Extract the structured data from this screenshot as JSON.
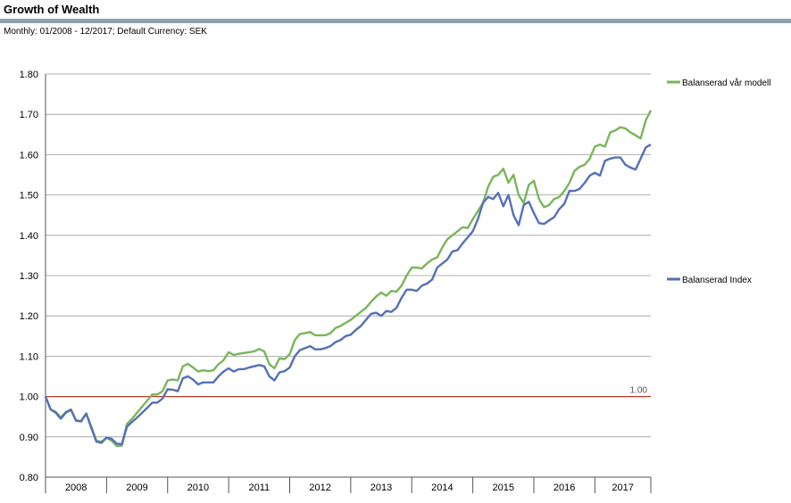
{
  "header": {
    "title": "Growth of Wealth",
    "subtitle": "Monthly: 01/2008 - 12/2017; Default Currency: SEK"
  },
  "colors": {
    "title_rule": "#8ea1b3",
    "model": "#79b65a",
    "index": "#5470b8",
    "baseline": "#c0392b",
    "grid": "#9a9a9a"
  },
  "chart_data": {
    "type": "line",
    "title": "Growth of Wealth",
    "xlabel": "",
    "ylabel": "",
    "ylim": [
      0.8,
      1.8
    ],
    "yticks": [
      "1.80",
      "1.70",
      "1.60",
      "1.50",
      "1.40",
      "1.30",
      "1.20",
      "1.10",
      "1.00",
      "0.90",
      "0.80"
    ],
    "ytick_values": [
      1.8,
      1.7,
      1.6,
      1.5,
      1.4,
      1.3,
      1.2,
      1.1,
      1.0,
      0.9,
      0.8
    ],
    "xlim": [
      "2008-01",
      "2017-12"
    ],
    "year_labels": [
      "2008",
      "2009",
      "2010",
      "2011",
      "2012",
      "2013",
      "2014",
      "2015",
      "2016",
      "2017"
    ],
    "grid": "horizontal",
    "legend_position": "right",
    "reference_line": {
      "value": 1.0,
      "label": "1.00"
    },
    "series": [
      {
        "name": "Balanserad vår modell",
        "color": "#79b65a",
        "points": [
          [
            "2008-01",
            1.0
          ],
          [
            "2008-02",
            0.968
          ],
          [
            "2008-03",
            0.962
          ],
          [
            "2008-04",
            0.948
          ],
          [
            "2008-05",
            0.962
          ],
          [
            "2008-06",
            0.968
          ],
          [
            "2008-07",
            0.94
          ],
          [
            "2008-08",
            0.94
          ],
          [
            "2008-09",
            0.958
          ],
          [
            "2008-10",
            0.925
          ],
          [
            "2008-11",
            0.89
          ],
          [
            "2008-12",
            0.888
          ],
          [
            "2009-01",
            0.898
          ],
          [
            "2009-02",
            0.89
          ],
          [
            "2009-03",
            0.877
          ],
          [
            "2009-04",
            0.878
          ],
          [
            "2009-05",
            0.932
          ],
          [
            "2009-06",
            0.945
          ],
          [
            "2009-07",
            0.96
          ],
          [
            "2009-08",
            0.975
          ],
          [
            "2009-09",
            0.99
          ],
          [
            "2009-10",
            1.005
          ],
          [
            "2009-11",
            1.005
          ],
          [
            "2009-12",
            1.013
          ],
          [
            "2010-01",
            1.04
          ],
          [
            "2010-02",
            1.042
          ],
          [
            "2010-03",
            1.04
          ],
          [
            "2010-04",
            1.075
          ],
          [
            "2010-05",
            1.081
          ],
          [
            "2010-06",
            1.072
          ],
          [
            "2010-07",
            1.062
          ],
          [
            "2010-08",
            1.065
          ],
          [
            "2010-09",
            1.063
          ],
          [
            "2010-10",
            1.065
          ],
          [
            "2010-11",
            1.08
          ],
          [
            "2010-12",
            1.09
          ],
          [
            "2011-01",
            1.11
          ],
          [
            "2011-02",
            1.103
          ],
          [
            "2011-03",
            1.106
          ],
          [
            "2011-04",
            1.108
          ],
          [
            "2011-05",
            1.11
          ],
          [
            "2011-06",
            1.112
          ],
          [
            "2011-07",
            1.118
          ],
          [
            "2011-08",
            1.112
          ],
          [
            "2011-09",
            1.08
          ],
          [
            "2011-10",
            1.07
          ],
          [
            "2011-11",
            1.095
          ],
          [
            "2011-12",
            1.093
          ],
          [
            "2012-01",
            1.105
          ],
          [
            "2012-02",
            1.14
          ],
          [
            "2012-03",
            1.155
          ],
          [
            "2012-04",
            1.157
          ],
          [
            "2012-05",
            1.16
          ],
          [
            "2012-06",
            1.152
          ],
          [
            "2012-07",
            1.152
          ],
          [
            "2012-08",
            1.152
          ],
          [
            "2012-09",
            1.157
          ],
          [
            "2012-10",
            1.17
          ],
          [
            "2012-11",
            1.175
          ],
          [
            "2012-12",
            1.183
          ],
          [
            "2013-01",
            1.19
          ],
          [
            "2013-02",
            1.2
          ],
          [
            "2013-03",
            1.21
          ],
          [
            "2013-04",
            1.22
          ],
          [
            "2013-05",
            1.235
          ],
          [
            "2013-06",
            1.248
          ],
          [
            "2013-07",
            1.258
          ],
          [
            "2013-08",
            1.25
          ],
          [
            "2013-09",
            1.262
          ],
          [
            "2013-10",
            1.26
          ],
          [
            "2013-11",
            1.275
          ],
          [
            "2013-12",
            1.3
          ],
          [
            "2014-01",
            1.32
          ],
          [
            "2014-02",
            1.32
          ],
          [
            "2014-03",
            1.318
          ],
          [
            "2014-04",
            1.33
          ],
          [
            "2014-05",
            1.34
          ],
          [
            "2014-06",
            1.345
          ],
          [
            "2014-07",
            1.37
          ],
          [
            "2014-08",
            1.39
          ],
          [
            "2014-09",
            1.4
          ],
          [
            "2014-10",
            1.41
          ],
          [
            "2014-11",
            1.42
          ],
          [
            "2014-12",
            1.418
          ],
          [
            "2015-01",
            1.44
          ],
          [
            "2015-02",
            1.46
          ],
          [
            "2015-03",
            1.48
          ],
          [
            "2015-04",
            1.52
          ],
          [
            "2015-05",
            1.545
          ],
          [
            "2015-06",
            1.55
          ],
          [
            "2015-07",
            1.565
          ],
          [
            "2015-08",
            1.53
          ],
          [
            "2015-09",
            1.55
          ],
          [
            "2015-10",
            1.5
          ],
          [
            "2015-11",
            1.48
          ],
          [
            "2015-12",
            1.525
          ],
          [
            "2016-01",
            1.535
          ],
          [
            "2016-02",
            1.49
          ],
          [
            "2016-03",
            1.47
          ],
          [
            "2016-04",
            1.475
          ],
          [
            "2016-05",
            1.49
          ],
          [
            "2016-06",
            1.495
          ],
          [
            "2016-07",
            1.51
          ],
          [
            "2016-08",
            1.53
          ],
          [
            "2016-09",
            1.56
          ],
          [
            "2016-10",
            1.57
          ],
          [
            "2016-11",
            1.575
          ],
          [
            "2016-12",
            1.59
          ],
          [
            "2017-01",
            1.62
          ],
          [
            "2017-02",
            1.625
          ],
          [
            "2017-03",
            1.62
          ],
          [
            "2017-04",
            1.655
          ],
          [
            "2017-05",
            1.66
          ],
          [
            "2017-06",
            1.668
          ],
          [
            "2017-07",
            1.665
          ],
          [
            "2017-08",
            1.655
          ],
          [
            "2017-09",
            1.648
          ],
          [
            "2017-10",
            1.64
          ],
          [
            "2017-11",
            1.685
          ],
          [
            "2017-12",
            1.71
          ]
        ]
      },
      {
        "name": "Balanserad Index",
        "color": "#5470b8",
        "points": [
          [
            "2008-01",
            1.0
          ],
          [
            "2008-02",
            0.968
          ],
          [
            "2008-03",
            0.96
          ],
          [
            "2008-04",
            0.945
          ],
          [
            "2008-05",
            0.96
          ],
          [
            "2008-06",
            0.967
          ],
          [
            "2008-07",
            0.94
          ],
          [
            "2008-08",
            0.938
          ],
          [
            "2008-09",
            0.958
          ],
          [
            "2008-10",
            0.922
          ],
          [
            "2008-11",
            0.888
          ],
          [
            "2008-12",
            0.885
          ],
          [
            "2009-01",
            0.898
          ],
          [
            "2009-02",
            0.895
          ],
          [
            "2009-03",
            0.883
          ],
          [
            "2009-04",
            0.882
          ],
          [
            "2009-05",
            0.925
          ],
          [
            "2009-06",
            0.937
          ],
          [
            "2009-07",
            0.948
          ],
          [
            "2009-08",
            0.96
          ],
          [
            "2009-09",
            0.972
          ],
          [
            "2009-10",
            0.985
          ],
          [
            "2009-11",
            0.985
          ],
          [
            "2009-12",
            0.995
          ],
          [
            "2010-01",
            1.018
          ],
          [
            "2010-02",
            1.017
          ],
          [
            "2010-03",
            1.013
          ],
          [
            "2010-04",
            1.045
          ],
          [
            "2010-05",
            1.05
          ],
          [
            "2010-06",
            1.042
          ],
          [
            "2010-07",
            1.03
          ],
          [
            "2010-08",
            1.035
          ],
          [
            "2010-09",
            1.035
          ],
          [
            "2010-10",
            1.035
          ],
          [
            "2010-11",
            1.05
          ],
          [
            "2010-12",
            1.062
          ],
          [
            "2011-01",
            1.07
          ],
          [
            "2011-02",
            1.062
          ],
          [
            "2011-03",
            1.068
          ],
          [
            "2011-04",
            1.068
          ],
          [
            "2011-05",
            1.072
          ],
          [
            "2011-06",
            1.075
          ],
          [
            "2011-07",
            1.078
          ],
          [
            "2011-08",
            1.075
          ],
          [
            "2011-09",
            1.05
          ],
          [
            "2011-10",
            1.04
          ],
          [
            "2011-11",
            1.06
          ],
          [
            "2011-12",
            1.063
          ],
          [
            "2012-01",
            1.072
          ],
          [
            "2012-02",
            1.1
          ],
          [
            "2012-03",
            1.115
          ],
          [
            "2012-04",
            1.12
          ],
          [
            "2012-05",
            1.125
          ],
          [
            "2012-06",
            1.117
          ],
          [
            "2012-07",
            1.117
          ],
          [
            "2012-08",
            1.12
          ],
          [
            "2012-09",
            1.125
          ],
          [
            "2012-10",
            1.135
          ],
          [
            "2012-11",
            1.14
          ],
          [
            "2012-12",
            1.15
          ],
          [
            "2013-01",
            1.153
          ],
          [
            "2013-02",
            1.165
          ],
          [
            "2013-03",
            1.175
          ],
          [
            "2013-04",
            1.19
          ],
          [
            "2013-05",
            1.205
          ],
          [
            "2013-06",
            1.208
          ],
          [
            "2013-07",
            1.2
          ],
          [
            "2013-08",
            1.212
          ],
          [
            "2013-09",
            1.21
          ],
          [
            "2013-10",
            1.22
          ],
          [
            "2013-11",
            1.245
          ],
          [
            "2013-12",
            1.265
          ],
          [
            "2014-01",
            1.265
          ],
          [
            "2014-02",
            1.262
          ],
          [
            "2014-03",
            1.275
          ],
          [
            "2014-04",
            1.28
          ],
          [
            "2014-05",
            1.29
          ],
          [
            "2014-06",
            1.32
          ],
          [
            "2014-07",
            1.33
          ],
          [
            "2014-08",
            1.34
          ],
          [
            "2014-09",
            1.36
          ],
          [
            "2014-10",
            1.363
          ],
          [
            "2014-11",
            1.38
          ],
          [
            "2014-12",
            1.395
          ],
          [
            "2015-01",
            1.41
          ],
          [
            "2015-02",
            1.44
          ],
          [
            "2015-03",
            1.48
          ],
          [
            "2015-04",
            1.495
          ],
          [
            "2015-05",
            1.49
          ],
          [
            "2015-06",
            1.505
          ],
          [
            "2015-07",
            1.472
          ],
          [
            "2015-08",
            1.5
          ],
          [
            "2015-09",
            1.45
          ],
          [
            "2015-10",
            1.425
          ],
          [
            "2015-11",
            1.475
          ],
          [
            "2015-12",
            1.483
          ],
          [
            "2016-01",
            1.455
          ],
          [
            "2016-02",
            1.43
          ],
          [
            "2016-03",
            1.428
          ],
          [
            "2016-04",
            1.437
          ],
          [
            "2016-05",
            1.445
          ],
          [
            "2016-06",
            1.465
          ],
          [
            "2016-07",
            1.478
          ],
          [
            "2016-08",
            1.51
          ],
          [
            "2016-09",
            1.51
          ],
          [
            "2016-10",
            1.515
          ],
          [
            "2016-11",
            1.53
          ],
          [
            "2016-12",
            1.548
          ],
          [
            "2017-01",
            1.555
          ],
          [
            "2017-02",
            1.548
          ],
          [
            "2017-03",
            1.585
          ],
          [
            "2017-04",
            1.59
          ],
          [
            "2017-05",
            1.593
          ],
          [
            "2017-06",
            1.593
          ],
          [
            "2017-07",
            1.575
          ],
          [
            "2017-08",
            1.568
          ],
          [
            "2017-09",
            1.563
          ],
          [
            "2017-10",
            1.59
          ],
          [
            "2017-11",
            1.618
          ],
          [
            "2017-12",
            1.625
          ]
        ]
      }
    ]
  }
}
